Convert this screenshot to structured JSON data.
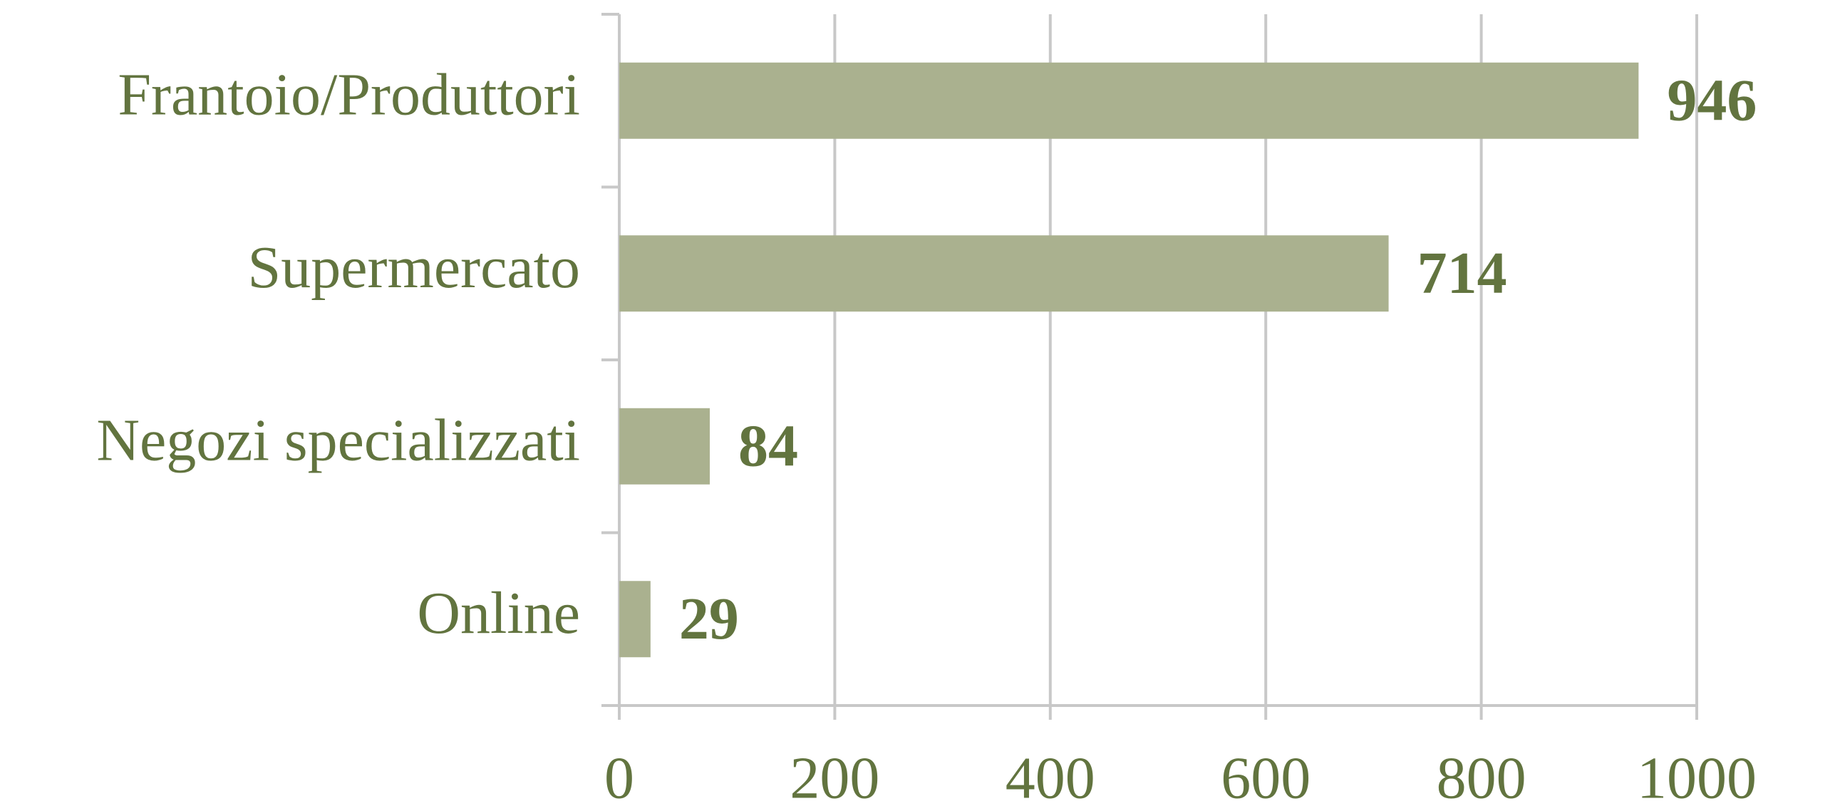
{
  "chart_data": {
    "type": "bar",
    "orientation": "horizontal",
    "categories": [
      "Frantoio/Produttori",
      "Supermercato",
      "Negozi specializzati",
      "Online"
    ],
    "values": [
      946,
      714,
      84,
      29
    ],
    "color": "#aab18f",
    "xlim": [
      0,
      1000
    ],
    "xticks": [
      0,
      200,
      400,
      600,
      800,
      1000
    ],
    "grid": true
  }
}
